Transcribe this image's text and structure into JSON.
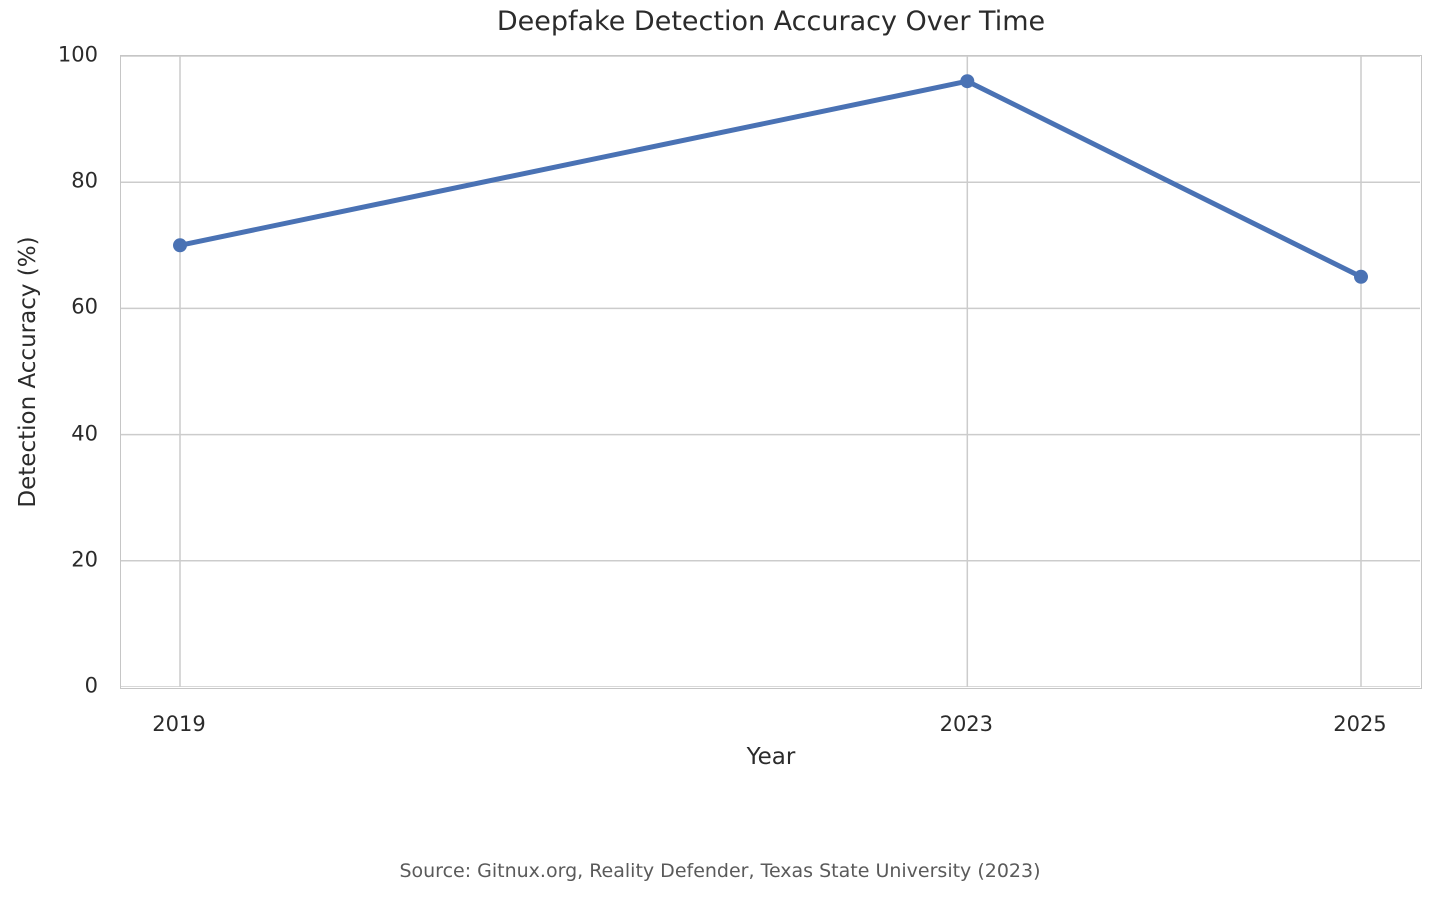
{
  "figure": {
    "source_note": "Source: Gitnux.org, Reality Defender, Texas State University (2023)"
  },
  "chart_data": {
    "type": "line",
    "title": "Deepfake Detection Accuracy Over Time",
    "xlabel": "Year",
    "ylabel": "Detection Accuracy (%)",
    "x": [
      2019,
      2023,
      2025
    ],
    "values": [
      70,
      96,
      65
    ],
    "xticks": [
      2019,
      2023,
      2025
    ],
    "yticks": [
      0,
      20,
      40,
      60,
      80,
      100
    ],
    "xlim": [
      2018.7,
      2025.3
    ],
    "ylim": [
      0,
      100
    ],
    "grid": true,
    "legend": false,
    "line_color": "#4a72b4",
    "grid_color": "#cccccc",
    "marker": "circle",
    "line_width": 5,
    "marker_radius": 7
  }
}
